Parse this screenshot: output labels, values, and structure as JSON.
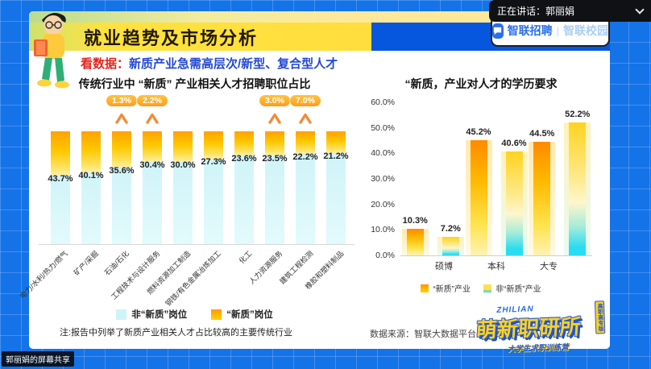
{
  "meeting": {
    "speaking_label": "正在讲话：郭丽娟",
    "screen_share_label": "郭丽娟的屏幕共享"
  },
  "header": {
    "title": "就业趋势及市场分析",
    "brand_primary": "智联招聘",
    "brand_divider": "|",
    "brand_secondary": "智联校园"
  },
  "subtitle": {
    "prefix": "看数据：",
    "text": "新质产业急需高层次/新型、复合型人才"
  },
  "footer": {
    "note": "注:报告中列举了新质产业相关人才占比较高的主要传统行业",
    "source": "数据来源：智联大数据平台"
  },
  "program_logo": {
    "brand": "ZHILIAN",
    "title": "萌新职研所",
    "subtitle": "大学生求职训练营",
    "edition": "高职高专版"
  },
  "colors": {
    "background_blue": "#1573e8",
    "banner_yellow": "#ffe23f",
    "band_blue": "#0657dd",
    "brand_blue": "#2a6fe8",
    "accent_red": "#e3261d",
    "subtitle_blue": "#2348d6",
    "new_quality_orange": "#ffa200",
    "non_new_quality_cyan": "#cff4f8"
  },
  "chart_data": [
    {
      "type": "bar",
      "title": "传统行业中 “新质” 产业相关人才招聘职位占比",
      "categories": [
        "电力/水利/热力/燃气",
        "矿产/采掘",
        "石油/石化",
        "工程技术与设计服务",
        "燃料资源加工制造",
        "钢铁/有色金属冶炼加工",
        "化工",
        "人力资源服务",
        "建筑工程检测",
        "橡胶和塑料制品"
      ],
      "values": [
        43.7,
        40.1,
        35.6,
        30.4,
        30.0,
        27.3,
        23.6,
        23.5,
        22.2,
        21.2
      ],
      "value_suffix": "%",
      "annotations": [
        {
          "category_index": 2,
          "label": "1.3%"
        },
        {
          "category_index": 3,
          "label": "2.2%"
        },
        {
          "category_index": 7,
          "label": "3.0%"
        },
        {
          "category_index": 8,
          "label": "7.0%"
        }
      ],
      "legend": [
        "非“新质”岗位",
        "“新质”岗位"
      ],
      "legend_position": "bottom",
      "grid": false
    },
    {
      "type": "bar",
      "title": "“新质，产业对人才的学历要求",
      "categories": [
        "硕博",
        "本科",
        "大专"
      ],
      "series": [
        {
          "name": "“新质”产业",
          "values": [
            10.3,
            45.2,
            44.5
          ]
        },
        {
          "name": "非“新质”产业",
          "values": [
            7.2,
            40.6,
            52.2
          ]
        }
      ],
      "value_suffix": "%",
      "ylim": [
        0,
        60
      ],
      "yticks": [
        "0.0%",
        "10.0%",
        "20.0%",
        "30.0%",
        "40.0%",
        "50.0%",
        "60.0%"
      ],
      "legend_position": "bottom",
      "grid": false
    }
  ]
}
